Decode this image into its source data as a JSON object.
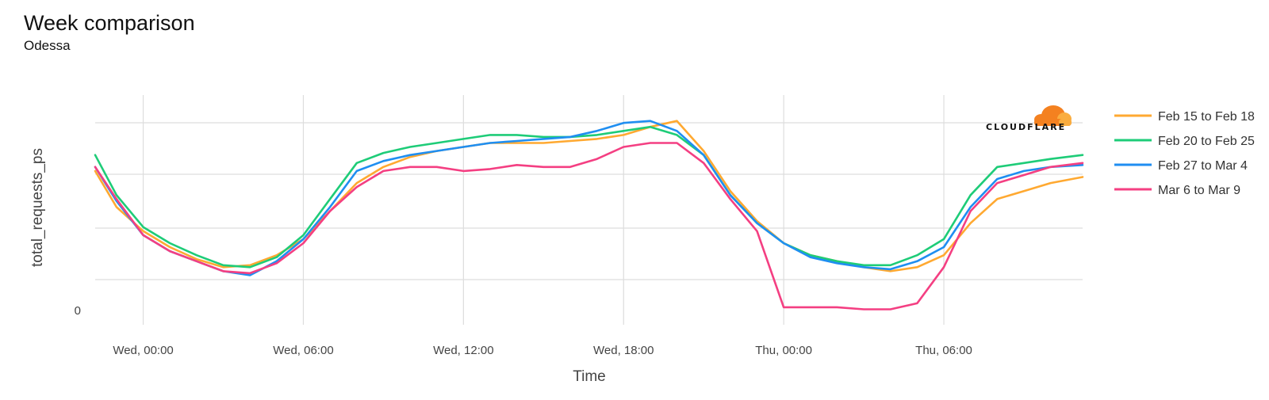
{
  "chart_data": {
    "type": "line",
    "title": "Week comparison",
    "subtitle": "Odessa",
    "xlabel": "Time",
    "ylabel": "total_requests_ps",
    "x_ticks": [
      "Wed, 00:00",
      "Wed, 06:00",
      "Wed, 12:00",
      "Wed, 18:00",
      "Thu, 00:00",
      "Thu, 06:00"
    ],
    "y_ticks": [
      "0"
    ],
    "xlim": [
      -1.8,
      35.2
    ],
    "ylim": [
      0,
      100
    ],
    "grid": true,
    "legend_position": "right",
    "x_hours": [
      -1.8,
      -1,
      0,
      1,
      2,
      3,
      4,
      5,
      6,
      7,
      8,
      9,
      10,
      11,
      12,
      13,
      14,
      15,
      16,
      17,
      18,
      19,
      20,
      21,
      22,
      23,
      24,
      25,
      26,
      27,
      28,
      29,
      30,
      31,
      32,
      33,
      34,
      35.2
    ],
    "series": [
      {
        "name": "Feb 15 to Feb 18",
        "color": "#ffa931",
        "values": [
          70,
          52,
          40,
          32,
          26,
          22,
          23,
          28,
          36,
          50,
          64,
          72,
          77,
          80,
          82,
          84,
          84,
          84,
          85,
          86,
          88,
          92,
          95,
          80,
          60,
          45,
          34,
          28,
          25,
          22,
          20,
          22,
          28,
          44,
          56,
          60,
          64,
          67
        ]
      },
      {
        "name": "Feb 20 to Feb 25",
        "color": "#1ecc78",
        "values": [
          78,
          58,
          42,
          34,
          28,
          23,
          22,
          27,
          38,
          56,
          74,
          79,
          82,
          84,
          86,
          88,
          88,
          87,
          87,
          88,
          90,
          92,
          88,
          78,
          58,
          44,
          34,
          28,
          25,
          23,
          23,
          28,
          36,
          58,
          72,
          74,
          76,
          78
        ]
      },
      {
        "name": "Feb 27 to Mar 4",
        "color": "#1f8ef1",
        "values": [
          72,
          55,
          38,
          30,
          25,
          20,
          18,
          25,
          36,
          52,
          70,
          75,
          78,
          80,
          82,
          84,
          85,
          86,
          87,
          90,
          94,
          95,
          90,
          78,
          58,
          44,
          34,
          27,
          24,
          22,
          21,
          25,
          32,
          52,
          66,
          70,
          72,
          73
        ]
      },
      {
        "name": "Mar 6 to Mar 9",
        "color": "#f43f82",
        "values": [
          72,
          56,
          38,
          30,
          25,
          20,
          19,
          24,
          34,
          50,
          62,
          70,
          72,
          72,
          70,
          71,
          73,
          72,
          72,
          76,
          82,
          84,
          84,
          74,
          56,
          40,
          2,
          2,
          2,
          1,
          1,
          4,
          22,
          50,
          64,
          68,
          72,
          74
        ]
      }
    ]
  },
  "logo": {
    "text": "CLOUDFLARE"
  }
}
